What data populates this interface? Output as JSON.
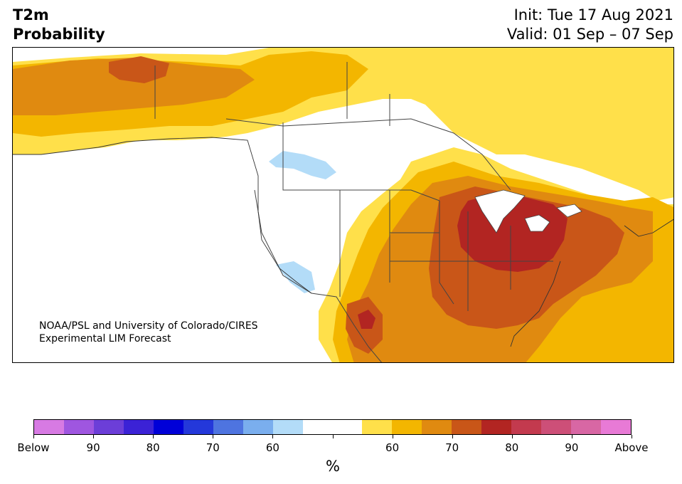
{
  "title": {
    "line1": "T2m",
    "line2": "Probability",
    "init": "Init: Tue 17 Aug 2021",
    "valid": "Valid: 01 Sep – 07 Sep"
  },
  "credit": {
    "line1": "NOAA/PSL and University of Colorado/CIRES",
    "line2": "Experimental LIM Forecast"
  },
  "colorbar": {
    "colors": [
      "#d77ae3",
      "#9f56e0",
      "#6c3ed8",
      "#3b22d6",
      "#0000d8",
      "#2438da",
      "#4e74e0",
      "#7aaeee",
      "#b3dcf8",
      "#ffffff",
      "#ffffff",
      "#ffe04a",
      "#f3b600",
      "#e08a10",
      "#c95618",
      "#b22522",
      "#c33a4e",
      "#cd4f78",
      "#d867a4",
      "#e87ad6"
    ],
    "labels": [
      "Below",
      "90",
      "80",
      "70",
      "60",
      "",
      "60",
      "70",
      "80",
      "90",
      "Above"
    ],
    "unit": "%"
  },
  "legend_colors": {
    "below_extreme": "#d77ae3",
    "light_blue": "#b3dcf8",
    "yellow": "#ffe04a",
    "gold": "#f3b600",
    "orange": "#e08a10",
    "dark_orange": "#c95618",
    "red": "#b22522",
    "above_extreme": "#e87ad6"
  }
}
